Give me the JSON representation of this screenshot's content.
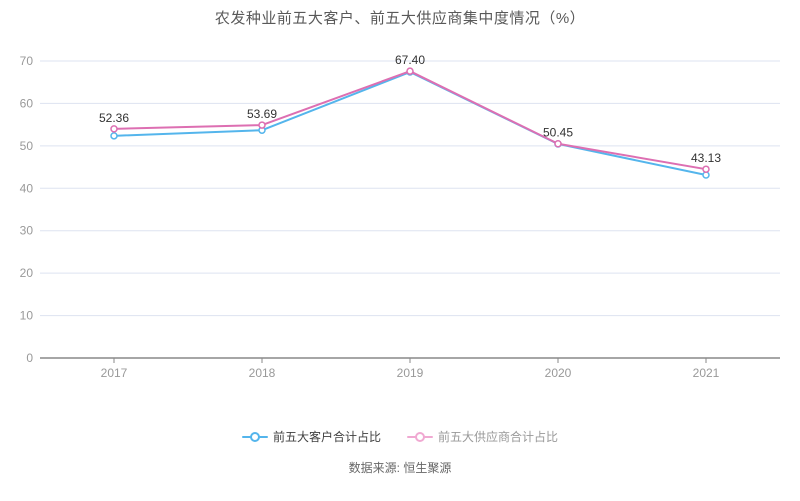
{
  "title": "农发种业前五大客户、前五大供应商集中度情况（%）",
  "source": "数据来源: 恒生聚源",
  "chart_data": {
    "type": "line",
    "x": [
      "2017",
      "2018",
      "2019",
      "2020",
      "2021"
    ],
    "series": [
      {
        "name": "前五大客户合计占比",
        "color": "#54b5ec",
        "legend_icon_color": "#54b5ec",
        "legend_text_color": "#404040",
        "values": [
          52.36,
          53.69,
          67.4,
          50.45,
          43.13
        ],
        "point_labels": [
          "52.36",
          "53.69",
          "67.40",
          "50.45",
          "43.13"
        ]
      },
      {
        "name": "前五大供应商合计占比",
        "color": "#dd6fb2",
        "legend_icon_color": "#f0a9d2",
        "legend_text_color": "#999999",
        "values": [
          54.0,
          54.9,
          67.6,
          50.5,
          44.5
        ],
        "point_labels": null
      }
    ],
    "ylim": [
      0,
      70
    ],
    "yticks": [
      0,
      10,
      20,
      30,
      40,
      50,
      60,
      70
    ],
    "grid": true,
    "legend_position": "bottom",
    "marker": "open-circle",
    "data_label_color": "#333333",
    "axis_label_color": "#999999",
    "axis_line_color": "#4d4d4d",
    "grid_color": "#dde3f0",
    "tick_color": "#8a8a8a"
  }
}
